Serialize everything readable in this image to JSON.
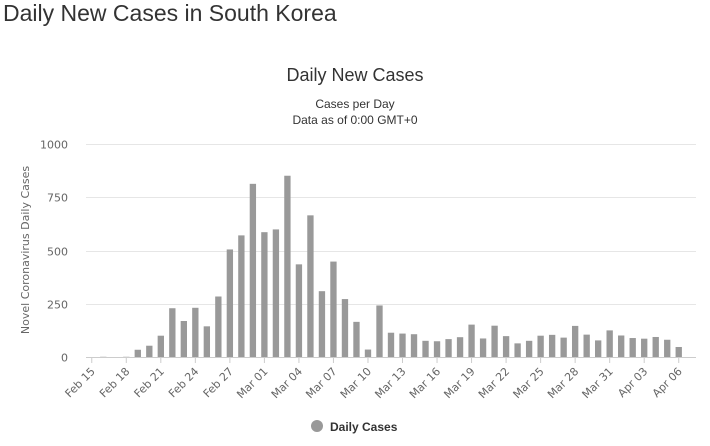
{
  "page_title": "Daily New Cases in South Korea",
  "chart_data": {
    "type": "bar",
    "title": "Daily New Cases",
    "subtitle_lines": [
      "Cases per Day",
      "Data as of 0:00 GMT+0"
    ],
    "xlabel": "",
    "ylabel": "Novel Coronavirus Daily Cases",
    "ylim": [
      0,
      1000
    ],
    "y_ticks": [
      0,
      250,
      500,
      750,
      1000
    ],
    "grid": true,
    "legend_position": "bottom",
    "bar_color": "#999999",
    "x_tick_labels": [
      "Feb 15",
      "Feb 18",
      "Feb 21",
      "Feb 24",
      "Feb 27",
      "Mar 01",
      "Mar 04",
      "Mar 07",
      "Mar 10",
      "Mar 13",
      "Mar 16",
      "Mar 19",
      "Mar 22",
      "Mar 25",
      "Mar 28",
      "Mar 31",
      "Apr 03",
      "Apr 06"
    ],
    "categories": [
      "Feb 15",
      "Feb 16",
      "Feb 17",
      "Feb 18",
      "Feb 19",
      "Feb 20",
      "Feb 21",
      "Feb 22",
      "Feb 23",
      "Feb 24",
      "Feb 25",
      "Feb 26",
      "Feb 27",
      "Feb 28",
      "Feb 29",
      "Mar 01",
      "Mar 02",
      "Mar 03",
      "Mar 04",
      "Mar 05",
      "Mar 06",
      "Mar 07",
      "Mar 08",
      "Mar 09",
      "Mar 10",
      "Mar 11",
      "Mar 12",
      "Mar 13",
      "Mar 14",
      "Mar 15",
      "Mar 16",
      "Mar 17",
      "Mar 18",
      "Mar 19",
      "Mar 20",
      "Mar 21",
      "Mar 22",
      "Mar 23",
      "Mar 24",
      "Mar 25",
      "Mar 26",
      "Mar 27",
      "Mar 28",
      "Mar 29",
      "Mar 30",
      "Mar 31",
      "Apr 01",
      "Apr 02",
      "Apr 03",
      "Apr 04",
      "Apr 05",
      "Apr 06",
      "Apr 07"
    ],
    "series": [
      {
        "name": "Daily Cases",
        "values": [
          0,
          1,
          0,
          1,
          34,
          53,
          100,
          229,
          169,
          231,
          144,
          284,
          505,
          571,
          813,
          586,
          599,
          851,
          435,
          665,
          309,
          448,
          272,
          165,
          35,
          242,
          114,
          110,
          107,
          76,
          74,
          84,
          93,
          152,
          87,
          147,
          98,
          64,
          76,
          100,
          104,
          91,
          146,
          105,
          78,
          125,
          101,
          89,
          86,
          94,
          81,
          47,
          0
        ]
      }
    ]
  }
}
